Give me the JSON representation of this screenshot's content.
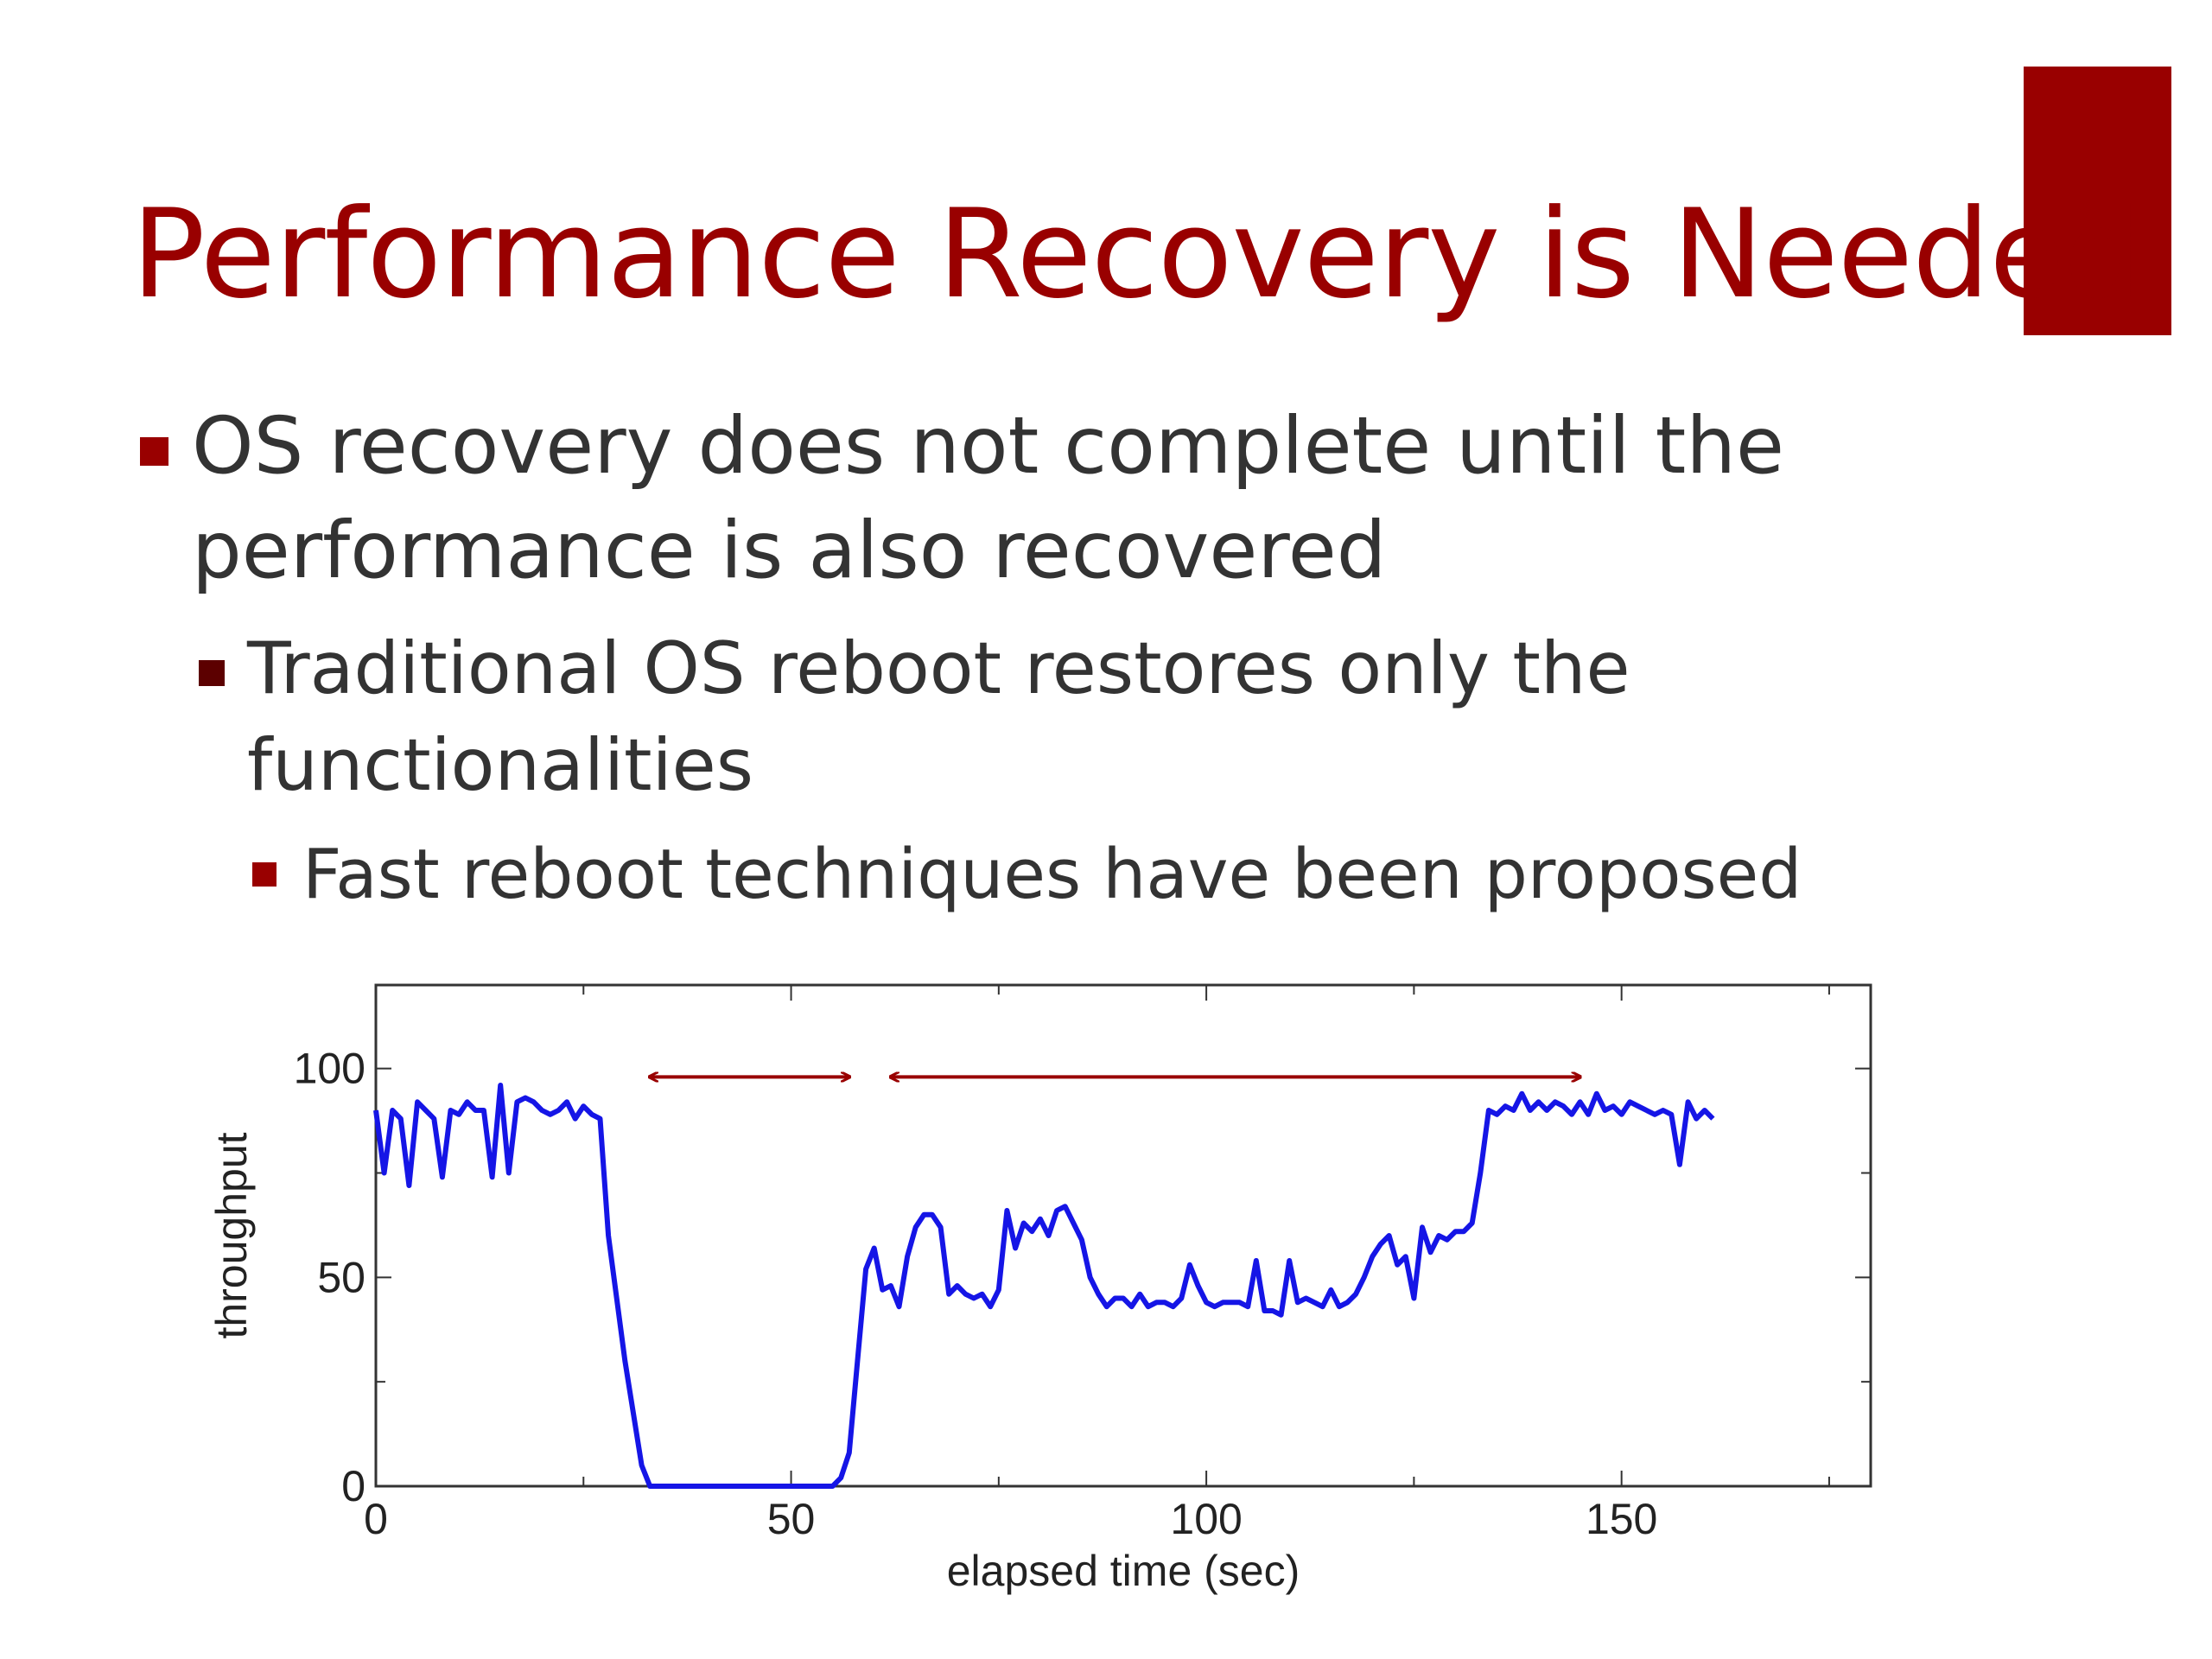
{
  "slide": {
    "title": "Performance Recovery is Needed",
    "accent_color": "#990000",
    "text_color": "#333333",
    "bullets": [
      {
        "level": 1,
        "lines": [
          "OS recovery does not complete until the",
          "performance is also recovered"
        ]
      },
      {
        "level": 2,
        "lines": [
          "Traditional OS reboot restores only the",
          "functionalities"
        ]
      },
      {
        "level": 3,
        "lines": [
          "Fast reboot techniques have been proposed"
        ]
      }
    ]
  },
  "chart_data": {
    "type": "line",
    "title": "",
    "xlabel": "elapsed time (sec)",
    "ylabel": "throughput",
    "xlim": [
      0,
      180
    ],
    "ylim": [
      0,
      120
    ],
    "x_ticks": [
      0,
      50,
      100,
      150
    ],
    "x_tick_labels": [
      "0",
      "50",
      "100",
      "150"
    ],
    "y_ticks": [
      0,
      50,
      100
    ],
    "y_tick_labels": [
      "0",
      "50",
      "100"
    ],
    "grid": false,
    "line_color": "#1515e6",
    "annotation_color": "#990000",
    "annotations": [
      {
        "type": "double-arrow",
        "x_start": 33,
        "x_end": 57,
        "y": 98
      },
      {
        "type": "double-arrow",
        "x_start": 62,
        "x_end": 145,
        "y": 98
      }
    ],
    "series": [
      {
        "points": [
          [
            0,
            90
          ],
          [
            1,
            75
          ],
          [
            2,
            90
          ],
          [
            3,
            88
          ],
          [
            4,
            72
          ],
          [
            5,
            92
          ],
          [
            6,
            90
          ],
          [
            7,
            88
          ],
          [
            8,
            74
          ],
          [
            9,
            90
          ],
          [
            10,
            89
          ],
          [
            11,
            92
          ],
          [
            12,
            90
          ],
          [
            13,
            90
          ],
          [
            14,
            74
          ],
          [
            15,
            96
          ],
          [
            16,
            75
          ],
          [
            17,
            92
          ],
          [
            18,
            93
          ],
          [
            19,
            92
          ],
          [
            20,
            90
          ],
          [
            21,
            89
          ],
          [
            22,
            90
          ],
          [
            23,
            92
          ],
          [
            24,
            88
          ],
          [
            25,
            91
          ],
          [
            26,
            89
          ],
          [
            27,
            88
          ],
          [
            28,
            60
          ],
          [
            30,
            30
          ],
          [
            32,
            5
          ],
          [
            33,
            0
          ],
          [
            40,
            0
          ],
          [
            45,
            0
          ],
          [
            50,
            0
          ],
          [
            55,
            0
          ],
          [
            56,
            2
          ],
          [
            57,
            8
          ],
          [
            58,
            30
          ],
          [
            59,
            52
          ],
          [
            60,
            57
          ],
          [
            61,
            47
          ],
          [
            62,
            48
          ],
          [
            63,
            43
          ],
          [
            64,
            55
          ],
          [
            65,
            62
          ],
          [
            66,
            65
          ],
          [
            67,
            65
          ],
          [
            68,
            62
          ],
          [
            69,
            46
          ],
          [
            70,
            48
          ],
          [
            71,
            46
          ],
          [
            72,
            45
          ],
          [
            73,
            46
          ],
          [
            74,
            43
          ],
          [
            75,
            47
          ],
          [
            76,
            66
          ],
          [
            77,
            57
          ],
          [
            78,
            63
          ],
          [
            79,
            61
          ],
          [
            80,
            64
          ],
          [
            81,
            60
          ],
          [
            82,
            66
          ],
          [
            83,
            67
          ],
          [
            84,
            63
          ],
          [
            85,
            59
          ],
          [
            86,
            50
          ],
          [
            87,
            46
          ],
          [
            88,
            43
          ],
          [
            89,
            45
          ],
          [
            90,
            45
          ],
          [
            91,
            43
          ],
          [
            92,
            46
          ],
          [
            93,
            43
          ],
          [
            94,
            44
          ],
          [
            95,
            44
          ],
          [
            96,
            43
          ],
          [
            97,
            45
          ],
          [
            98,
            53
          ],
          [
            99,
            48
          ],
          [
            100,
            44
          ],
          [
            101,
            43
          ],
          [
            102,
            44
          ],
          [
            103,
            44
          ],
          [
            104,
            44
          ],
          [
            105,
            43
          ],
          [
            106,
            54
          ],
          [
            107,
            42
          ],
          [
            108,
            42
          ],
          [
            109,
            41
          ],
          [
            110,
            54
          ],
          [
            111,
            44
          ],
          [
            112,
            45
          ],
          [
            113,
            44
          ],
          [
            114,
            43
          ],
          [
            115,
            47
          ],
          [
            116,
            43
          ],
          [
            117,
            44
          ],
          [
            118,
            46
          ],
          [
            119,
            50
          ],
          [
            120,
            55
          ],
          [
            121,
            58
          ],
          [
            122,
            60
          ],
          [
            123,
            53
          ],
          [
            124,
            55
          ],
          [
            125,
            45
          ],
          [
            126,
            62
          ],
          [
            127,
            56
          ],
          [
            128,
            60
          ],
          [
            129,
            59
          ],
          [
            130,
            61
          ],
          [
            131,
            61
          ],
          [
            132,
            63
          ],
          [
            133,
            75
          ],
          [
            134,
            90
          ],
          [
            135,
            89
          ],
          [
            136,
            91
          ],
          [
            137,
            90
          ],
          [
            138,
            94
          ],
          [
            139,
            90
          ],
          [
            140,
            92
          ],
          [
            141,
            90
          ],
          [
            142,
            92
          ],
          [
            143,
            91
          ],
          [
            144,
            89
          ],
          [
            145,
            92
          ],
          [
            146,
            89
          ],
          [
            147,
            94
          ],
          [
            148,
            90
          ],
          [
            149,
            91
          ],
          [
            150,
            89
          ],
          [
            151,
            92
          ],
          [
            152,
            91
          ],
          [
            153,
            90
          ],
          [
            154,
            89
          ],
          [
            155,
            90
          ],
          [
            156,
            89
          ],
          [
            157,
            77
          ],
          [
            158,
            92
          ],
          [
            159,
            88
          ],
          [
            160,
            90
          ],
          [
            161,
            88
          ]
        ]
      }
    ]
  }
}
